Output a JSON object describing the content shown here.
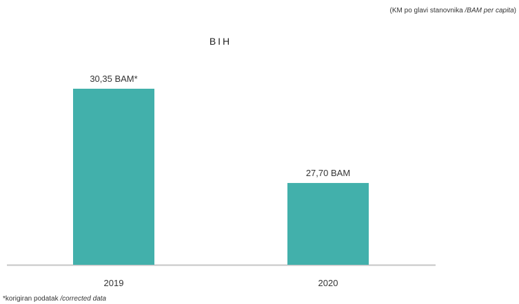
{
  "unit_note": {
    "prefix": "(KM po glavi stanovnika ",
    "italic": "/BAM per capita",
    "suffix": ")"
  },
  "footnote": {
    "prefix": "*korigiran podatak ",
    "italic": "/corrected data"
  },
  "colors": {
    "bar": "#42b0ab",
    "axis": "#c6c6c6"
  },
  "chart_data": {
    "type": "bar",
    "title": "BIH",
    "categories": [
      "2019",
      "2020"
    ],
    "values": [
      30.35,
      27.7
    ],
    "value_labels": [
      "30,35 BAM*",
      "27,70 BAM"
    ],
    "xlabel": "",
    "ylabel": "",
    "ylim": [
      25.4,
      31
    ],
    "grid": false,
    "legend": "none"
  }
}
